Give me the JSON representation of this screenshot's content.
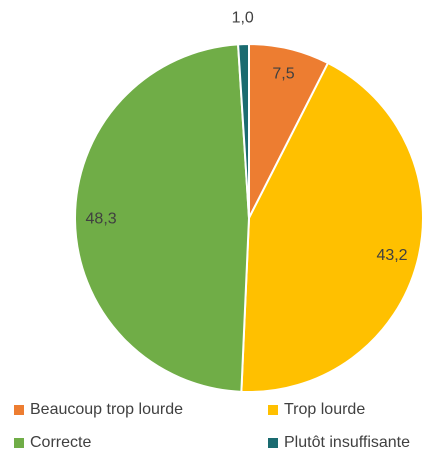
{
  "chart_data": {
    "type": "pie",
    "categories": [
      "Beaucoup trop lourde",
      "Trop lourde",
      "Correcte",
      "Plutôt insuffisante"
    ],
    "values": [
      7.5,
      43.2,
      48.3,
      1.0
    ],
    "value_labels": [
      "7,5",
      "43,2",
      "48,3",
      "1,0"
    ],
    "colors": [
      "#ed7d31",
      "#ffc000",
      "#70ad47",
      "#1a6b70"
    ],
    "legend": "bottom"
  }
}
